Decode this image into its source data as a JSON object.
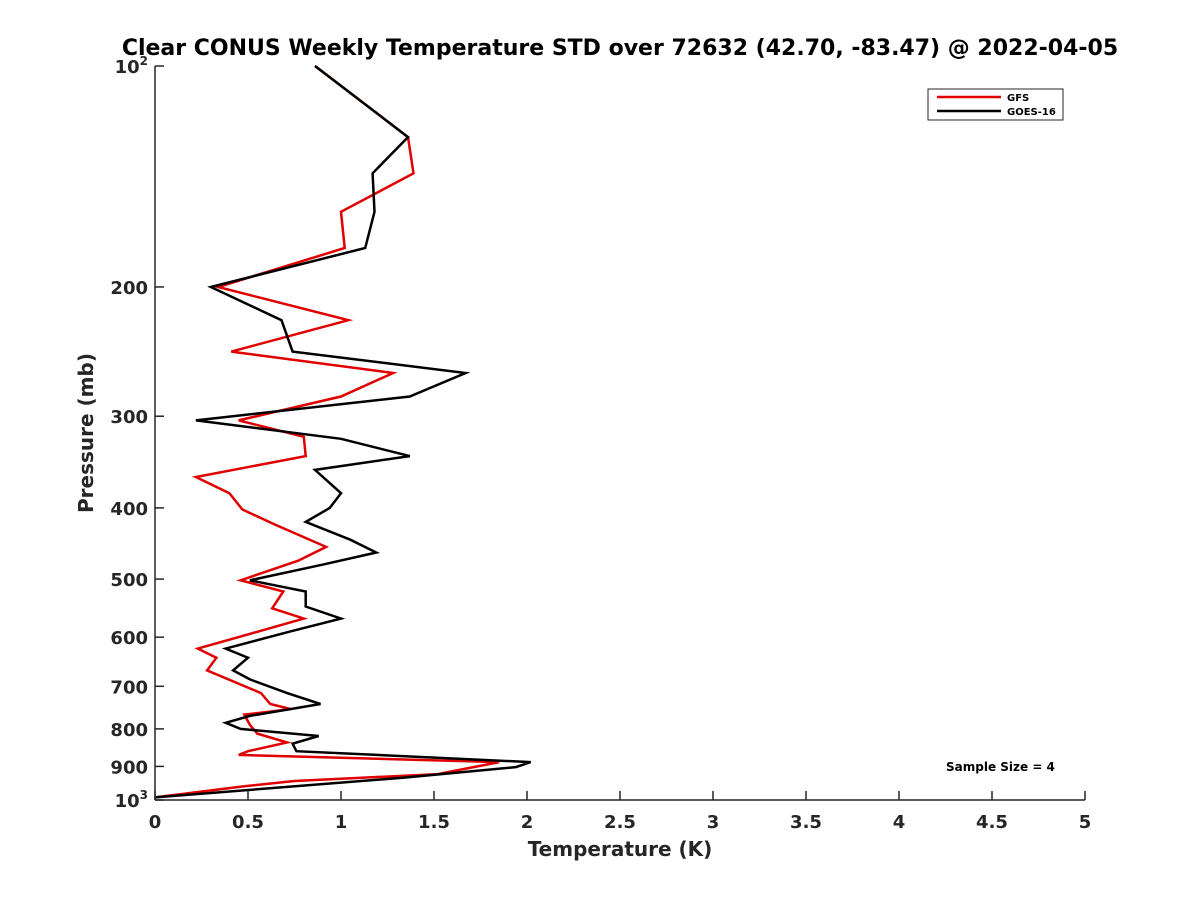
{
  "chart_data": {
    "type": "line",
    "title": "Clear CONUS Weekly Temperature STD over 72632 (42.70, -83.47) @ 2022-04-05",
    "xlabel": "Temperature (K)",
    "ylabel": "Pressure (mb)",
    "xlim": [
      0,
      5
    ],
    "ylim": [
      100,
      1000
    ],
    "y_scale": "log",
    "y_reversed": true,
    "grid": false,
    "legend_placement": "top-right",
    "x_ticks": [
      0,
      0.5,
      1,
      1.5,
      2,
      2.5,
      3,
      3.5,
      4,
      4.5,
      5
    ],
    "x_tick_labels": [
      "0",
      "0.5",
      "1",
      "1.5",
      "2",
      "2.5",
      "3",
      "3.5",
      "4",
      "4.5",
      "5"
    ],
    "y_ticks": [
      {
        "value": 100,
        "base": "10",
        "exp": "2"
      },
      {
        "value": 200,
        "label": "200"
      },
      {
        "value": 300,
        "label": "300"
      },
      {
        "value": 400,
        "label": "400"
      },
      {
        "value": 500,
        "label": "500"
      },
      {
        "value": 600,
        "label": "600"
      },
      {
        "value": 700,
        "label": "700"
      },
      {
        "value": 800,
        "label": "800"
      },
      {
        "value": 900,
        "label": "900"
      },
      {
        "value": 1000,
        "base": "10",
        "exp": "3"
      }
    ],
    "series": [
      {
        "name": "GFS",
        "color": "#e00000",
        "points": [
          [
            0.86,
            100
          ],
          [
            1.36,
            125
          ],
          [
            1.39,
            140
          ],
          [
            1.0,
            158
          ],
          [
            1.02,
            177
          ],
          [
            0.34,
            200
          ],
          [
            1.04,
            222
          ],
          [
            0.41,
            245
          ],
          [
            1.28,
            262
          ],
          [
            1.0,
            282
          ],
          [
            0.45,
            304
          ],
          [
            0.8,
            320
          ],
          [
            0.81,
            340
          ],
          [
            0.22,
            363
          ],
          [
            0.4,
            382
          ],
          [
            0.47,
            402
          ],
          [
            0.65,
            422
          ],
          [
            0.92,
            452
          ],
          [
            0.77,
            472
          ],
          [
            0.46,
            502
          ],
          [
            0.69,
            520
          ],
          [
            0.63,
            548
          ],
          [
            0.8,
            566
          ],
          [
            0.55,
            590
          ],
          [
            0.23,
            622
          ],
          [
            0.33,
            640
          ],
          [
            0.28,
            666
          ],
          [
            0.57,
            715
          ],
          [
            0.62,
            740
          ],
          [
            0.73,
            752
          ],
          [
            0.48,
            765
          ],
          [
            0.51,
            790
          ],
          [
            0.55,
            812
          ],
          [
            0.71,
            835
          ],
          [
            0.5,
            858
          ],
          [
            0.45,
            868
          ],
          [
            1.85,
            888
          ],
          [
            1.52,
            922
          ],
          [
            0.75,
            942
          ],
          [
            0.48,
            958
          ],
          [
            0.0,
            992
          ]
        ]
      },
      {
        "name": "GOES-16",
        "color": "#000000",
        "points": [
          [
            0.86,
            100
          ],
          [
            1.36,
            125
          ],
          [
            1.17,
            140
          ],
          [
            1.18,
            158
          ],
          [
            1.13,
            177
          ],
          [
            0.3,
            200
          ],
          [
            0.68,
            222
          ],
          [
            0.74,
            245
          ],
          [
            1.67,
            262
          ],
          [
            1.37,
            282
          ],
          [
            0.22,
            304
          ],
          [
            1.0,
            322
          ],
          [
            1.37,
            340
          ],
          [
            0.86,
            355
          ],
          [
            1.0,
            382
          ],
          [
            0.94,
            400
          ],
          [
            0.81,
            418
          ],
          [
            1.05,
            442
          ],
          [
            1.19,
            460
          ],
          [
            0.9,
            478
          ],
          [
            0.51,
            502
          ],
          [
            0.81,
            520
          ],
          [
            0.81,
            545
          ],
          [
            1.0,
            566
          ],
          [
            0.72,
            590
          ],
          [
            0.38,
            622
          ],
          [
            0.5,
            640
          ],
          [
            0.42,
            666
          ],
          [
            0.51,
            685
          ],
          [
            0.71,
            715
          ],
          [
            0.89,
            740
          ],
          [
            0.51,
            768
          ],
          [
            0.38,
            785
          ],
          [
            0.46,
            800
          ],
          [
            0.88,
            818
          ],
          [
            0.74,
            838
          ],
          [
            0.76,
            858
          ],
          [
            2.02,
            888
          ],
          [
            1.94,
            902
          ],
          [
            1.34,
            932
          ],
          [
            0.0,
            992
          ]
        ]
      }
    ],
    "annotations": [
      "Sample Size = 4"
    ]
  }
}
